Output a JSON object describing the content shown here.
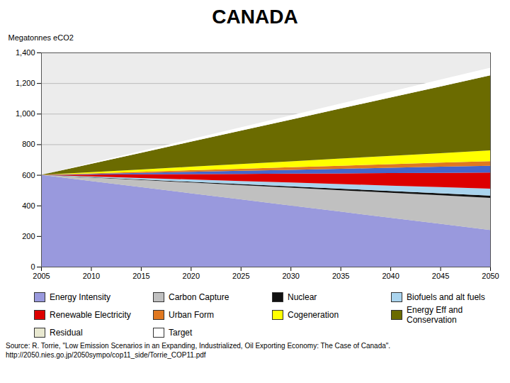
{
  "chart_data": {
    "type": "area",
    "stacked": true,
    "title": "CANADA",
    "ylabel": "Megatonnes eCO2",
    "x": [
      2005,
      2010,
      2015,
      2020,
      2025,
      2030,
      2035,
      2040,
      2045,
      2050
    ],
    "xlim": [
      2005,
      2050
    ],
    "xticks": [
      2005,
      2010,
      2015,
      2020,
      2025,
      2030,
      2035,
      2040,
      2045,
      2050
    ],
    "ylim": [
      0,
      1400
    ],
    "yticks": [
      0,
      200,
      400,
      600,
      800,
      {
        "value": 1000,
        "label": "1,000"
      },
      {
        "value": 1200,
        "label": "1,200"
      },
      {
        "value": 1400,
        "label": "1,400"
      }
    ],
    "grid": true,
    "series": [
      {
        "name": "Energy Intensity",
        "color": "#9999dd",
        "values": [
          600,
          560,
          520,
          480,
          440,
          400,
          360,
          320,
          280,
          240
        ]
      },
      {
        "name": "Carbon Capture",
        "color": "#c0c0c0",
        "values": [
          0,
          23.333333333333332,
          46.666666666666664,
          70,
          93.33333333333333,
          116.66666666666666,
          140,
          163.33333333333331,
          186.66666666666666,
          210
        ]
      },
      {
        "name": "Nuclear",
        "color": "#111111",
        "values": [
          0,
          1.6666666666666667,
          3.3333333333333335,
          5,
          6.666666666666667,
          8.333333333333334,
          10,
          11.666666666666668,
          13.333333333333334,
          15
        ]
      },
      {
        "name": "Biofuels and alt fuels",
        "color": "#aad4ee",
        "values": [
          0,
          5,
          10,
          15,
          20,
          25,
          30,
          35,
          40,
          45
        ]
      },
      {
        "name": "Renewable Electricity",
        "color": "#dd0000",
        "values": [
          0,
          11.666666666666666,
          23.333333333333332,
          35,
          46.666666666666664,
          58.33333333333333,
          70,
          81.66666666666666,
          93.33333333333333,
          105
        ]
      },
      {
        "name": null,
        "color": "#4466cc",
        "values": [
          0,
          5,
          10,
          15,
          20,
          25,
          30,
          35,
          40,
          45
        ]
      },
      {
        "name": "Urban Form",
        "color": "#e07820",
        "values": [
          0,
          3.3333333333333335,
          6.666666666666667,
          10,
          13.333333333333334,
          16.666666666666668,
          20,
          23.333333333333336,
          26.666666666666668,
          30
        ]
      },
      {
        "name": "Cogeneration",
        "color": "#ffff00",
        "values": [
          0,
          7.777777777777778,
          15.555555555555555,
          23.333333333333336,
          31.11111111111111,
          38.88888888888889,
          46.66666666666667,
          54.44444444444445,
          62.22222222222222,
          70
        ]
      },
      {
        "name": "Energy Eff and Conservation",
        "color": "#6b6b00",
        "values": [
          0,
          54.44444444444444,
          108.88888888888889,
          163.33333333333331,
          217.77777777777777,
          272.22222222222223,
          326.66666666666663,
          381.1111111111111,
          435.55555555555554,
          490
        ]
      },
      {
        "name": "Residual",
        "color": "#e8e8d0",
        "values": [
          0,
          0,
          0,
          0,
          0,
          0,
          0,
          0,
          0,
          0
        ]
      },
      {
        "name": "Target",
        "color": "#ffffff",
        "values": [
          0,
          5.555555555555555,
          11.11111111111111,
          16.666666666666664,
          22.22222222222222,
          27.777777777777775,
          33.33333333333333,
          38.888888888888886,
          44.44444444444444,
          50
        ]
      }
    ],
    "annotations": [
      "Source: R. Torrie, \"Low Emission Scenarios in an Expanding, Industrialized, Oil Exporting Economy: The Case of Canada\".",
      "http://2050.nies.go.jp/2050sympo/cop11_side/Torrie_COP11.pdf"
    ]
  }
}
